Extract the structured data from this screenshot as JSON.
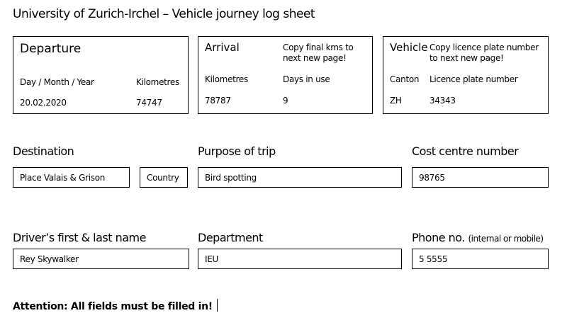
{
  "title": "University of Zurich-Irchel – Vehicle journey log sheet",
  "departure": {
    "heading": "Departure",
    "date_label": "Day / Month / Year",
    "km_label": "Kilometres",
    "date": "20.02.2020",
    "km": "74747"
  },
  "arrival": {
    "heading": "Arrival",
    "note": "Copy final kms to next new page!",
    "km_label": "Kilometres",
    "days_label": "Days in use",
    "km": "78787",
    "days": "9"
  },
  "vehicle": {
    "heading": "Vehicle",
    "note": "Copy licence plate number to next new page!",
    "canton_label": "Canton",
    "plate_label": "Licence plate number",
    "canton": "ZH",
    "plate": "34343"
  },
  "destination": {
    "label": "Destination",
    "value": "Place Valais & Grison",
    "country": "Country"
  },
  "purpose": {
    "label": "Purpose of trip",
    "value": "Bird spotting"
  },
  "cost_centre": {
    "label": "Cost centre number",
    "value": "98765"
  },
  "driver": {
    "label": "Driver’s first & last name",
    "value": "Rey Skywalker"
  },
  "department": {
    "label": "Department",
    "value": "IEU"
  },
  "phone": {
    "label": "Phone no.",
    "hint": "(internal or mobile)",
    "value": "5 5555"
  },
  "attention": "Attention: All fields must be filled in!"
}
